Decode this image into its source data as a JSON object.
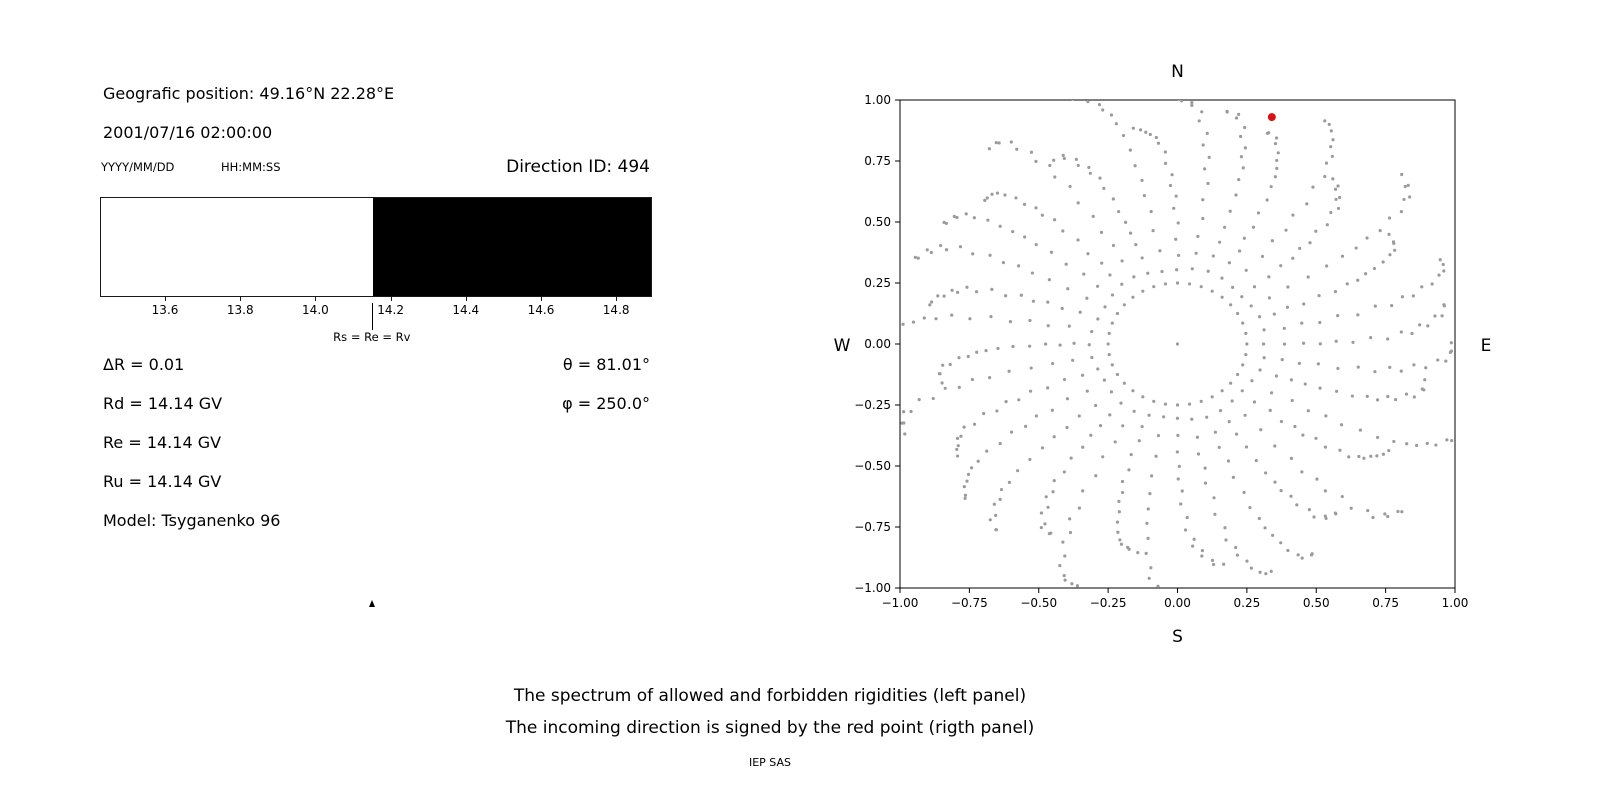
{
  "left_panel": {
    "geo_position": "Geografic position: 49.16°N 22.28°E",
    "datetime": "2001/07/16 02:00:00",
    "date_format": "YYYY/MM/DD",
    "time_format": "HH:MM:SS",
    "direction_id": "Direction ID: 494",
    "delta_r": "ΔR = 0.01",
    "theta": "θ = 81.01°",
    "rd": "Rd = 14.14 GV",
    "phi": "φ = 250.0°",
    "re": "Re = 14.14 GV",
    "ru": "Ru = 14.14 GV",
    "model": "Model: Tsyganenko 96"
  },
  "caption": {
    "line1": "The spectrum of allowed and forbidden rigidities (left panel)",
    "line2": "The incoming direction is signed by the red point (rigth panel)",
    "credit": "IEP SAS"
  },
  "chart_data": [
    {
      "type": "bar",
      "title": "Spectrum of allowed (white) and forbidden (black) rigidities",
      "x_min": 13.427,
      "x_max": 14.89,
      "x_ticks": [
        13.6,
        13.8,
        14.0,
        14.2,
        14.4,
        14.6,
        14.8
      ],
      "x_tick_labels": [
        "13.6",
        "13.8",
        "14.0",
        "14.2",
        "14.4",
        "14.6",
        "14.8"
      ],
      "regions": [
        {
          "label": "allowed",
          "from": 13.427,
          "to": 14.15,
          "color": "#ffffff"
        },
        {
          "label": "forbidden",
          "from": 14.15,
          "to": 14.89,
          "color": "#000000"
        }
      ],
      "arrow": {
        "x": 14.15,
        "label": "Rs = Re = Rv"
      }
    },
    {
      "type": "scatter",
      "title": "Incoming direction map (red point = incoming direction)",
      "xlim": [
        -1,
        1
      ],
      "ylim": [
        -1,
        1
      ],
      "x_ticks": [
        -1,
        -0.75,
        -0.5,
        -0.25,
        0,
        0.25,
        0.5,
        0.75,
        1
      ],
      "x_tick_labels": [
        "−1.00",
        "−0.75",
        "−0.50",
        "−0.25",
        "0.00",
        "0.25",
        "0.50",
        "0.75",
        "1.00"
      ],
      "y_ticks": [
        -1,
        -0.75,
        -0.5,
        -0.25,
        0,
        0.25,
        0.5,
        0.75,
        1
      ],
      "y_tick_labels": [
        "−1.00",
        "−0.75",
        "−0.50",
        "−0.25",
        "0.00",
        "0.25",
        "0.50",
        "0.75",
        "1.00"
      ],
      "compass_labels": {
        "top": "N",
        "bottom": "S",
        "left": "W",
        "right": "E"
      },
      "grid": false,
      "red_point": {
        "x": 0.34,
        "y": 0.93,
        "color": "#dd1111",
        "radius": 4
      },
      "gray_points": {
        "color": "#9b9b9b",
        "radius": 1.6,
        "pattern": {
          "spokes": 36,
          "spoke_step_deg": 10,
          "r_start": 0.31,
          "r_end_base": 0.97,
          "r_end_var": 0.1,
          "points_per_spoke": 16,
          "curl_deg": 10,
          "ring_radius": 0.25,
          "ring_points": 36,
          "center_dot": true
        }
      }
    }
  ]
}
